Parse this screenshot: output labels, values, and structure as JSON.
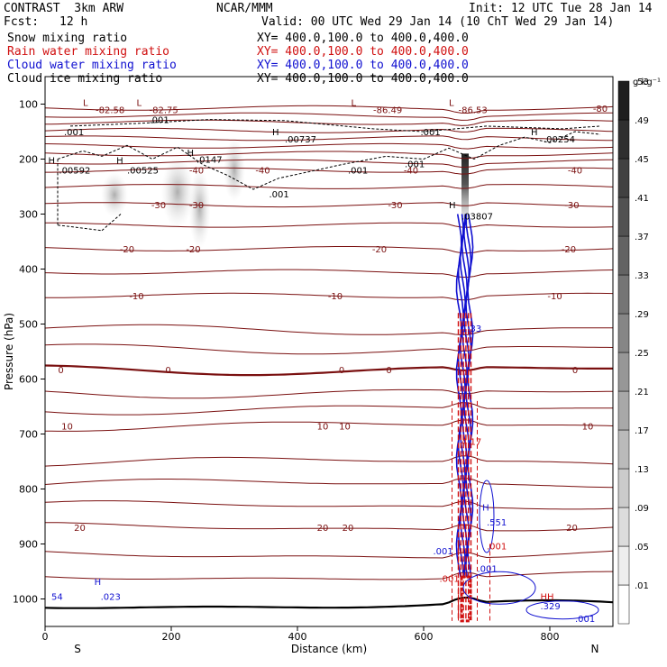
{
  "header": {
    "model": "CONTRAST  3km ARW",
    "org": "NCAR/MMM",
    "init": "Init: 12 UTC Tue 28 Jan 14",
    "fcst_label": "Fcst:",
    "fcst_value": "12 h",
    "valid": "Valid: 00 UTC Wed 29 Jan 14 (10 ChT Wed 29 Jan 14)",
    "fields": [
      {
        "name": "Snow mixing ratio",
        "xy": "XY= 400.0,100.0 to 400.0,400.0",
        "color": "#000000"
      },
      {
        "name": "Rain water mixing ratio",
        "xy": "XY= 400.0,100.0 to 400.0,400.0",
        "color": "#d01010"
      },
      {
        "name": "Cloud water mixing ratio",
        "xy": "XY= 400.0,100.0 to 400.0,400.0",
        "color": "#1010d0"
      },
      {
        "name": "Cloud ice mixing ratio",
        "xy": "XY= 400.0,100.0 to 400.0,400.0",
        "color": "#000000"
      }
    ]
  },
  "chart_data": {
    "type": "contour-cross-section",
    "xlabel": "Distance (km)",
    "ylabel": "Pressure (hPa)",
    "xlim": [
      0,
      900
    ],
    "ylim": [
      1050,
      50
    ],
    "x_ticks": [
      0,
      200,
      400,
      600,
      800
    ],
    "y_ticks": [
      100,
      200,
      300,
      400,
      500,
      600,
      700,
      800,
      900,
      1000
    ],
    "x_end_labels": {
      "left": "S",
      "right": "N"
    },
    "colorbar": {
      "unit": "g kg⁻¹",
      "levels": [
        ".01",
        ".05",
        ".09",
        ".13",
        ".17",
        ".21",
        ".25",
        ".29",
        ".33",
        ".37",
        ".41",
        ".45",
        ".49",
        ".53"
      ]
    },
    "temperature_contours": {
      "color": "#7a1010",
      "levels": [
        -80,
        -70,
        -60,
        -50,
        -40,
        -30,
        -20,
        -10,
        0,
        10,
        20
      ],
      "labels": [
        {
          "text": "-80",
          "x": 880,
          "p": 107
        },
        {
          "text": "-40",
          "x": 240,
          "p": 220
        },
        {
          "text": "-40",
          "x": 345,
          "p": 220
        },
        {
          "text": "-40",
          "x": 580,
          "p": 220
        },
        {
          "text": "-40",
          "x": 840,
          "p": 220
        },
        {
          "text": "-30",
          "x": 180,
          "p": 283
        },
        {
          "text": "-30",
          "x": 240,
          "p": 283
        },
        {
          "text": "-30",
          "x": 555,
          "p": 283
        },
        {
          "text": "-30",
          "x": 835,
          "p": 283
        },
        {
          "text": "-20",
          "x": 130,
          "p": 363
        },
        {
          "text": "-20",
          "x": 235,
          "p": 363
        },
        {
          "text": "-20",
          "x": 530,
          "p": 363
        },
        {
          "text": "-20",
          "x": 830,
          "p": 363
        },
        {
          "text": "-10",
          "x": 145,
          "p": 448
        },
        {
          "text": "-10",
          "x": 460,
          "p": 448
        },
        {
          "text": "-10",
          "x": 808,
          "p": 448
        },
        {
          "text": "0",
          "x": 25,
          "p": 583
        },
        {
          "text": "0",
          "x": 195,
          "p": 583
        },
        {
          "text": "0",
          "x": 470,
          "p": 583
        },
        {
          "text": "0",
          "x": 545,
          "p": 583
        },
        {
          "text": "0",
          "x": 840,
          "p": 583
        },
        {
          "text": "10",
          "x": 35,
          "p": 685
        },
        {
          "text": "10",
          "x": 440,
          "p": 685
        },
        {
          "text": "10",
          "x": 475,
          "p": 685
        },
        {
          "text": "10",
          "x": 860,
          "p": 685
        },
        {
          "text": "20",
          "x": 55,
          "p": 870
        },
        {
          "text": "20",
          "x": 440,
          "p": 870
        },
        {
          "text": "20",
          "x": 480,
          "p": 870
        },
        {
          "text": "20",
          "x": 835,
          "p": 870
        }
      ]
    },
    "extrema_labels": [
      {
        "text": "L",
        "x": 60,
        "p": 97,
        "color": "#7a1010"
      },
      {
        "text": "-82.58",
        "x": 80,
        "p": 110,
        "color": "#7a1010"
      },
      {
        "text": "L",
        "x": 145,
        "p": 97,
        "color": "#7a1010"
      },
      {
        "text": "-82.75",
        "x": 165,
        "p": 110,
        "color": "#7a1010"
      },
      {
        "text": "L",
        "x": 485,
        "p": 97,
        "color": "#7a1010"
      },
      {
        "text": "-86.49",
        "x": 520,
        "p": 110,
        "color": "#7a1010"
      },
      {
        "text": "L",
        "x": 640,
        "p": 97,
        "color": "#7a1010"
      },
      {
        "text": "-86.53",
        "x": 655,
        "p": 110,
        "color": "#7a1010"
      },
      {
        "text": ".001",
        "x": 165,
        "p": 128,
        "color": "#000000"
      },
      {
        "text": ".001",
        "x": 30,
        "p": 150,
        "color": "#000000"
      },
      {
        "text": "H",
        "x": 360,
        "p": 150,
        "color": "#000000"
      },
      {
        "text": ".00737",
        "x": 380,
        "p": 163,
        "color": "#000000"
      },
      {
        "text": ".001",
        "x": 595,
        "p": 150,
        "color": "#000000"
      },
      {
        "text": "H",
        "x": 770,
        "p": 150,
        "color": "#000000"
      },
      {
        "text": ".00254",
        "x": 790,
        "p": 163,
        "color": "#000000"
      },
      {
        "text": "H",
        "x": 225,
        "p": 188,
        "color": "#000000"
      },
      {
        "text": ".0147",
        "x": 240,
        "p": 200,
        "color": "#000000"
      },
      {
        "text": "H",
        "x": 5,
        "p": 202,
        "color": "#000000"
      },
      {
        "text": ".00592",
        "x": 22,
        "p": 220,
        "color": "#000000"
      },
      {
        "text": "H",
        "x": 113,
        "p": 202,
        "color": "#000000"
      },
      {
        "text": ".00525",
        "x": 130,
        "p": 220,
        "color": "#000000"
      },
      {
        "text": ".001",
        "x": 570,
        "p": 208,
        "color": "#000000"
      },
      {
        "text": ".001",
        "x": 480,
        "p": 220,
        "color": "#000000"
      },
      {
        "text": ".001",
        "x": 355,
        "p": 263,
        "color": "#000000"
      },
      {
        "text": "H",
        "x": 640,
        "p": 283,
        "color": "#000000"
      },
      {
        "text": ".03807",
        "x": 660,
        "p": 303,
        "color": "#000000"
      },
      {
        "text": "1.33",
        "x": 660,
        "p": 507,
        "color": "#1010d0"
      },
      {
        "text": "4.17",
        "x": 660,
        "p": 713,
        "color": "#d01010"
      },
      {
        "text": ".001",
        "x": 615,
        "p": 912,
        "color": "#1010d0"
      },
      {
        "text": "H",
        "x": 693,
        "p": 833,
        "color": "#1010d0"
      },
      {
        "text": ".551",
        "x": 700,
        "p": 860,
        "color": "#1010d0"
      },
      {
        "text": ".001",
        "x": 700,
        "p": 903,
        "color": "#d01010"
      },
      {
        "text": ".001",
        "x": 625,
        "p": 962,
        "color": "#d01010"
      },
      {
        "text": ".001",
        "x": 685,
        "p": 944,
        "color": "#1010d0"
      },
      {
        "text": "54",
        "x": 10,
        "p": 995,
        "color": "#1010d0"
      },
      {
        "text": "H",
        "x": 78,
        "p": 968,
        "color": "#1010d0"
      },
      {
        "text": ".023",
        "x": 88,
        "p": 995,
        "color": "#1010d0"
      },
      {
        "text": "HH",
        "x": 785,
        "p": 995,
        "color": "#d01010"
      },
      {
        "text": ".329",
        "x": 785,
        "p": 1012,
        "color": "#1010d0"
      },
      {
        "text": ".001",
        "x": 840,
        "p": 1035,
        "color": "#1010d0"
      }
    ]
  }
}
